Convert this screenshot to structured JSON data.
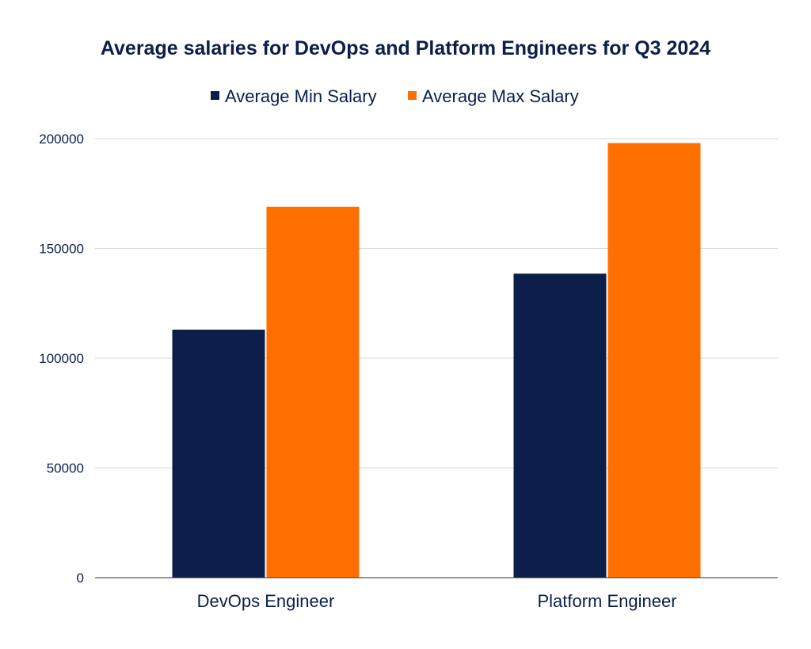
{
  "chart_data": {
    "type": "bar",
    "title": "Average salaries for DevOps and Platform Engineers for Q3 2024",
    "xlabel": "",
    "ylabel": "",
    "categories": [
      "DevOps Engineer",
      "Platform Engineer"
    ],
    "series": [
      {
        "name": "Average Min Salary",
        "color": "#0b1f4a",
        "values": [
          113000,
          138500
        ]
      },
      {
        "name": "Average Max Salary",
        "color": "#ff6f00",
        "values": [
          169000,
          198000
        ]
      }
    ],
    "ylim": [
      0,
      200000
    ],
    "yticks": [
      "0",
      "50000",
      "100000",
      "150000",
      "200000"
    ],
    "grid": true,
    "legend_position": "top-center",
    "colors": {
      "title": "#0b1f4a",
      "text": "#0b1f4a",
      "grid": "#d9d9d9",
      "axis": "#333333"
    }
  }
}
